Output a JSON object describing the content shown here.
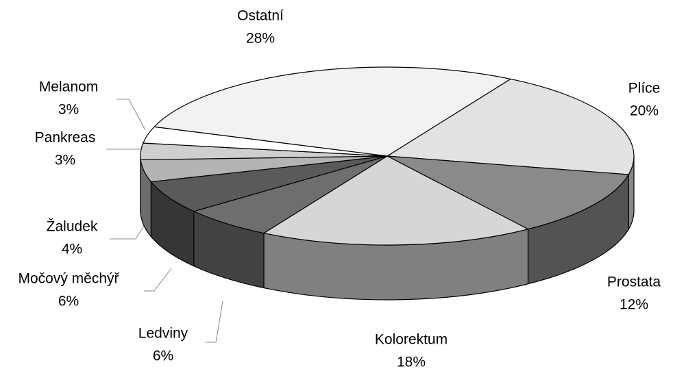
{
  "chart_data": {
    "type": "pie",
    "categories": [
      "Plíce",
      "Prostata",
      "Kolorektum",
      "Ledviny",
      "Močový měchýř",
      "Žaludek",
      "Pankreas",
      "Melanom",
      "Ostatní"
    ],
    "values": [
      20,
      12,
      18,
      6,
      6,
      4,
      3,
      3,
      28
    ],
    "value_labels": [
      "20%",
      "12%",
      "18%",
      "6%",
      "6%",
      "4%",
      "3%",
      "3%",
      "28%"
    ],
    "colors": [
      "#e2e2e2",
      "#8a8a8a",
      "#d6d6d6",
      "#6e6e6e",
      "#5a5a5a",
      "#b4b4b4",
      "#cfcfcf",
      "#ffffff",
      "#f2f2f2"
    ]
  }
}
